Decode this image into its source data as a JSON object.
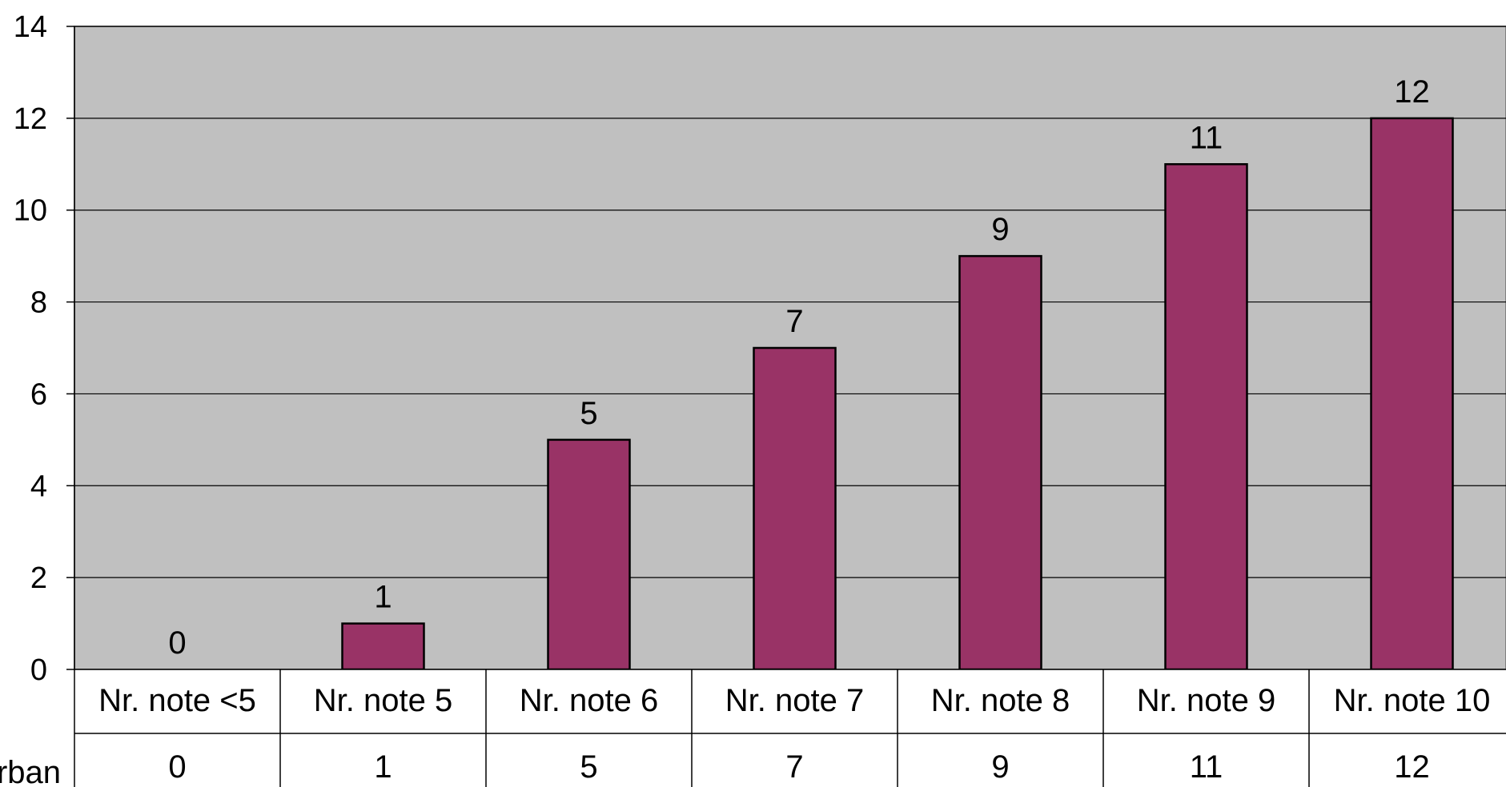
{
  "chart_data": {
    "type": "bar",
    "categories": [
      "Nr. note <5",
      "Nr. note 5",
      "Nr. note 6",
      "Nr. note 7",
      "Nr. note 8",
      "Nr. note 9",
      "Nr. note 10"
    ],
    "series": [
      {
        "name": "rban",
        "values": [
          0,
          1,
          5,
          7,
          9,
          11,
          12
        ]
      }
    ],
    "title": "",
    "xlabel": "",
    "ylabel": "",
    "ylim": [
      0,
      14
    ],
    "yticks": [
      0,
      2,
      4,
      6,
      8,
      10,
      12,
      14
    ],
    "grid": true,
    "data_labels": true,
    "data_table": true,
    "legend": "none"
  },
  "colors": {
    "plot_background": "#c0c0c0",
    "bar_fill": "#993366",
    "bar_stroke": "#000000",
    "gridline": "#000000"
  }
}
